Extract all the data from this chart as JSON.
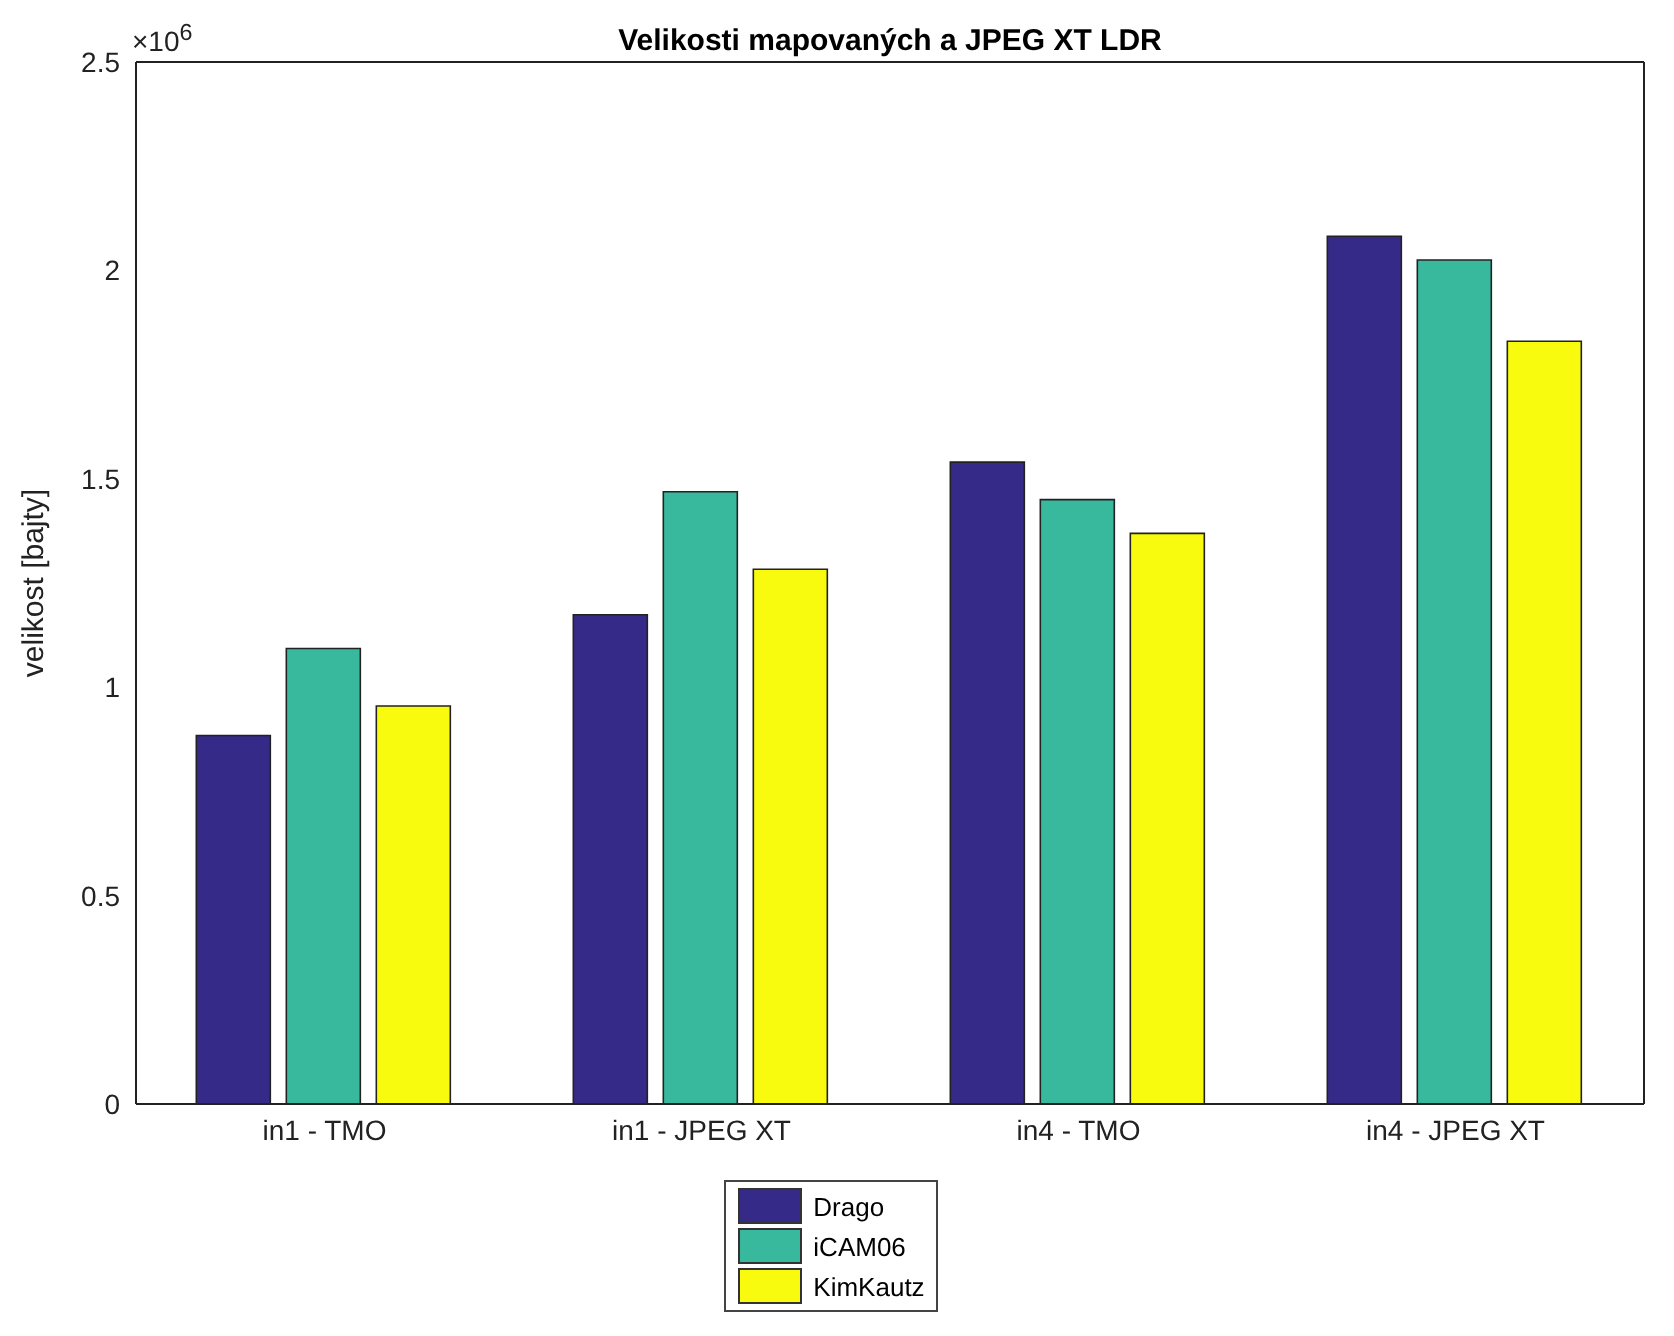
{
  "chart_data": {
    "type": "bar",
    "title": "Velikosti mapovaných a JPEG XT LDR",
    "ylabel": "velikost [bajty]",
    "annotations": [
      "×10$^{6}$"
    ],
    "categories": [
      "in1 - TMO",
      "in1 - JPEG XT",
      "in4 - TMO",
      "in4 - JPEG XT"
    ],
    "series": [
      {
        "name": "Drago",
        "color": "#352a87",
        "values": [
          0.884,
          1.174,
          1.54,
          2.082
        ]
      },
      {
        "name": "iCAM06",
        "color": "#38b99e",
        "values": [
          1.093,
          1.469,
          1.45,
          2.025
        ]
      },
      {
        "name": "KimKautz",
        "color": "#f9fb0e",
        "values": [
          0.955,
          1.283,
          1.369,
          1.83
        ]
      }
    ],
    "ylim": [
      0,
      2.5
    ],
    "yticks": [
      0,
      0.5,
      1,
      1.5,
      2,
      2.5
    ],
    "grid": false,
    "legend": "bottom"
  }
}
